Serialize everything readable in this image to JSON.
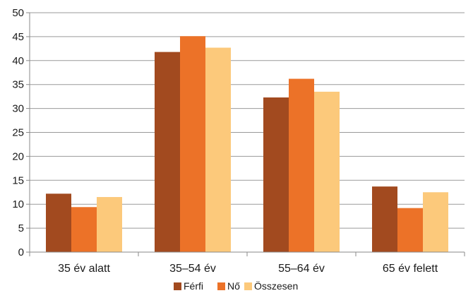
{
  "chart_data": {
    "type": "bar",
    "categories": [
      "35 év alatt",
      "35–54 év",
      "55–64 év",
      "65 év felett"
    ],
    "series": [
      {
        "name": "Férfi",
        "values": [
          12.2,
          41.8,
          32.3,
          13.7
        ],
        "color": "#a24a1f"
      },
      {
        "name": "Nő",
        "values": [
          9.4,
          45.1,
          36.2,
          9.2
        ],
        "color": "#ec7228"
      },
      {
        "name": "Összesen",
        "values": [
          11.5,
          42.7,
          33.5,
          12.5
        ],
        "color": "#fcc97b"
      }
    ],
    "ylim": [
      0,
      50
    ],
    "yticks": [
      0,
      5,
      10,
      15,
      20,
      25,
      30,
      35,
      40,
      45,
      50
    ],
    "grid": true,
    "legend_position": "bottom"
  }
}
